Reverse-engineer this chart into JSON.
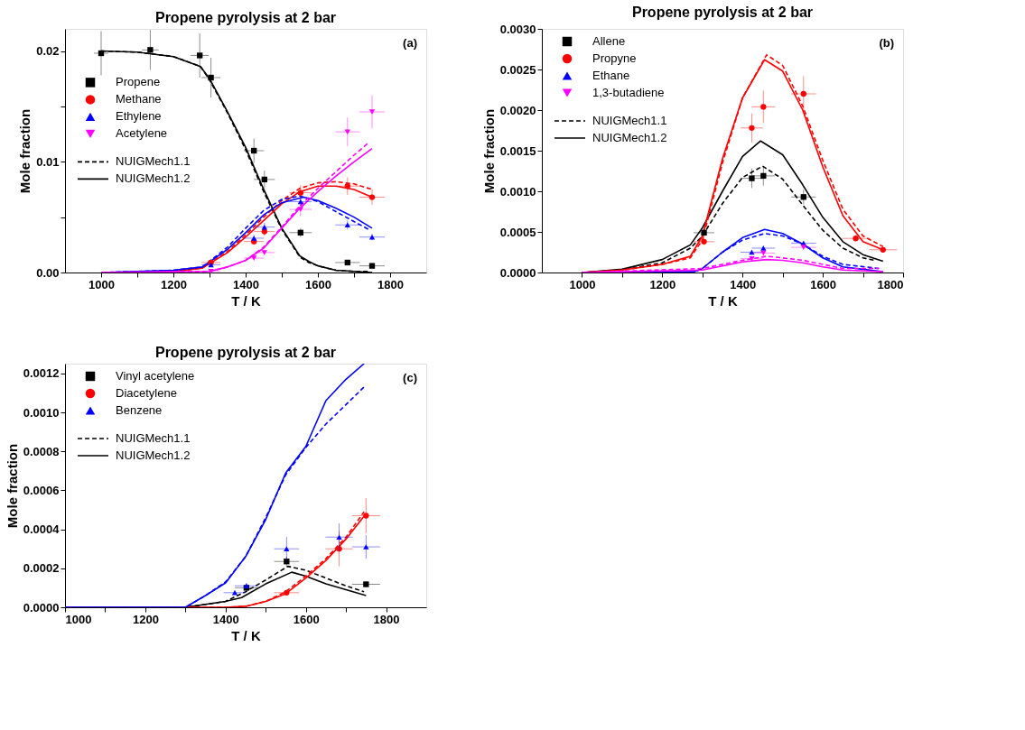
{
  "chart_data": [
    {
      "type": "scatter",
      "title": "Propene pyrolysis at 2 bar",
      "xlabel": "T / K",
      "ylabel": "Mole fraction",
      "annotations": [
        "(a)"
      ],
      "legend": "left",
      "grid": false,
      "xlim": [
        900,
        1900
      ],
      "xticks": [
        1000,
        {
          "value": 1100,
          "label": null
        },
        1200,
        {
          "value": 1300,
          "label": null
        },
        1400,
        {
          "value": 1500,
          "label": null
        },
        1600,
        {
          "value": 1700,
          "label": null
        },
        1800
      ],
      "ylim": [
        0,
        0.022
      ],
      "yticks": [
        {
          "value": 0,
          "label": "0.00"
        },
        {
          "value": 0.005,
          "label": null
        },
        0.01,
        {
          "value": 0.015,
          "label": null
        },
        0.02
      ],
      "series": [
        {
          "name": "Propene",
          "type": "scatter",
          "marker": "square",
          "color": "#000000",
          "x": [
            1000,
            1136,
            1273,
            1304,
            1423,
            1452,
            1552,
            1682,
            1750
          ],
          "values": [
            0.0198,
            0.0201,
            0.0196,
            0.0176,
            0.011,
            0.0084,
            0.0036,
            0.0009,
            0.0006
          ],
          "errors": [
            0.002,
            0.0018,
            0.002,
            0.0018,
            0.0011,
            0.0008,
            0.0004,
            0.0002,
            0.0002
          ],
          "xerrors": [
            20,
            23,
            25,
            26,
            28,
            29,
            31,
            34,
            35
          ]
        },
        {
          "name": "Methane",
          "type": "scatter",
          "marker": "circle",
          "color": "#ff0000",
          "x": [
            1304,
            1423,
            1452,
            1552,
            1682,
            1750
          ],
          "values": [
            0.0009,
            0.0028,
            0.0037,
            0.0072,
            0.0078,
            0.0068
          ],
          "errors": [
            0.0001,
            0.0003,
            0.0004,
            0.0007,
            0.0008,
            0.0007
          ],
          "xerrors": [
            26,
            28,
            29,
            31,
            34,
            35
          ]
        },
        {
          "name": "Ethylene",
          "type": "scatter",
          "marker": "triangle",
          "color": "#0000ff",
          "x": [
            1304,
            1423,
            1452,
            1552,
            1682,
            1750
          ],
          "values": [
            0.0007,
            0.0031,
            0.0041,
            0.0064,
            0.0043,
            0.0032
          ],
          "errors": [
            0.0001,
            0.0003,
            0.0004,
            0.0004,
            0.0004,
            0.0003
          ],
          "xerrors": [
            26,
            28,
            29,
            31,
            34,
            35
          ]
        },
        {
          "name": "Acetylene",
          "type": "scatter",
          "marker": "triangle-down",
          "color": "#ff00ff",
          "x": [
            1304,
            1423,
            1452,
            1552,
            1682,
            1750
          ],
          "values": [
            0.0001,
            0.0013,
            0.0018,
            0.0057,
            0.0127,
            0.0145
          ],
          "errors": [
            0.0001,
            0.0002,
            0.0002,
            0.0006,
            0.0013,
            0.0015
          ],
          "xerrors": [
            26,
            28,
            29,
            31,
            34,
            35
          ]
        },
        {
          "name": "NUIGMech1.1",
          "type": "line",
          "line_style": "dashed",
          "color": "#000000",
          "x": [
            1000,
            1100,
            1200,
            1275,
            1300,
            1350,
            1400,
            1450,
            1500,
            1550,
            1575,
            1600,
            1650,
            1700,
            1740
          ],
          "values": [
            0.02,
            0.0199,
            0.0195,
            0.0186,
            0.0174,
            0.0144,
            0.0111,
            0.0073,
            0.0039,
            0.0014,
            0.0009,
            0.0006,
            0.0002,
            0.0001,
            0.0001
          ]
        },
        {
          "name": "NUIGMech1.2",
          "type": "line",
          "line_style": "solid",
          "color": "#000000",
          "x": [
            1000,
            1100,
            1200,
            1275,
            1300,
            1350,
            1400,
            1450,
            1500,
            1550,
            1575,
            1600,
            1650,
            1700,
            1750
          ],
          "values": [
            0.02,
            0.0199,
            0.0195,
            0.0186,
            0.0175,
            0.0145,
            0.0113,
            0.0075,
            0.004,
            0.0015,
            0.001,
            0.0006,
            0.0002,
            0.0001,
            0
          ]
        },
        {
          "type": "line",
          "line_style": "dashed",
          "color": "#ff0000",
          "x": [
            1000,
            1200,
            1280,
            1350,
            1400,
            1450,
            1500,
            1550,
            1600,
            1650,
            1700,
            1750
          ],
          "values": [
            0,
            0.0001,
            0.0004,
            0.0019,
            0.0034,
            0.005,
            0.0065,
            0.0076,
            0.0081,
            0.0082,
            0.008,
            0.0075
          ]
        },
        {
          "type": "line",
          "line_style": "solid",
          "color": "#ff0000",
          "x": [
            1000,
            1200,
            1280,
            1350,
            1400,
            1450,
            1500,
            1550,
            1600,
            1650,
            1700,
            1750
          ],
          "values": [
            0,
            0.0001,
            0.0004,
            0.0018,
            0.0032,
            0.0047,
            0.0062,
            0.0073,
            0.0078,
            0.0078,
            0.0075,
            0.0068
          ]
        },
        {
          "type": "line",
          "line_style": "dashed",
          "color": "#0000ff",
          "x": [
            1000,
            1200,
            1280,
            1350,
            1400,
            1450,
            1500,
            1550,
            1600,
            1650,
            1700,
            1740
          ],
          "values": [
            0,
            0.0002,
            0.0005,
            0.0023,
            0.004,
            0.0056,
            0.0066,
            0.0069,
            0.0064,
            0.0055,
            0.0046,
            0.0039
          ]
        },
        {
          "type": "line",
          "line_style": "solid",
          "color": "#0000ff",
          "x": [
            1000,
            1200,
            1280,
            1350,
            1400,
            1450,
            1500,
            1560,
            1600,
            1650,
            1700,
            1750
          ],
          "values": [
            0,
            0.0002,
            0.0005,
            0.0021,
            0.0036,
            0.0052,
            0.0063,
            0.0068,
            0.0065,
            0.0058,
            0.005,
            0.004
          ]
        },
        {
          "type": "line",
          "line_style": "dashed",
          "color": "#ff00ff",
          "x": [
            1000,
            1300,
            1350,
            1400,
            1450,
            1500,
            1550,
            1600,
            1650,
            1700,
            1740
          ],
          "values": [
            0,
            0.0001,
            0.0005,
            0.0011,
            0.0023,
            0.0041,
            0.006,
            0.0076,
            0.0091,
            0.0106,
            0.0117
          ]
        },
        {
          "type": "line",
          "line_style": "solid",
          "color": "#ff00ff",
          "x": [
            1000,
            1300,
            1350,
            1400,
            1450,
            1500,
            1550,
            1600,
            1650,
            1700,
            1750
          ],
          "values": [
            0,
            0.0001,
            0.0005,
            0.0011,
            0.0022,
            0.004,
            0.0058,
            0.0073,
            0.0087,
            0.01,
            0.0112
          ]
        }
      ]
    },
    {
      "type": "scatter",
      "title": "Propene pyrolysis at 2 bar",
      "xlabel": "T / K",
      "ylabel": "Mole fraction",
      "annotations": [
        "(b)"
      ],
      "legend": "top left",
      "grid": false,
      "xlim": [
        900,
        1800
      ],
      "xticks": [
        1000,
        {
          "value": 1100,
          "label": null
        },
        1200,
        {
          "value": 1300,
          "label": null
        },
        1400,
        {
          "value": 1500,
          "label": null
        },
        1600,
        {
          "value": 1700,
          "label": null
        },
        1800
      ],
      "ylim": [
        0,
        0.003
      ],
      "yticks": [
        {
          "value": 0,
          "label": "0.0000"
        },
        0.0005,
        {
          "value": 0.001,
          "label": "0.0010"
        },
        0.0015,
        {
          "value": 0.002,
          "label": "0.0020"
        },
        0.0025,
        {
          "value": 0.003,
          "label": "0.0030"
        }
      ],
      "series": [
        {
          "name": "Allene",
          "type": "scatter",
          "marker": "square",
          "color": "#000000",
          "x": [
            1304,
            1423,
            1452,
            1552
          ],
          "values": [
            0.00049,
            0.00116,
            0.00119,
            0.00093
          ],
          "errors": [
            5e-05,
            0.00012,
            0.00012,
            9e-05
          ],
          "xerrors": [
            26,
            28,
            29,
            31
          ]
        },
        {
          "name": "Propyne",
          "type": "scatter",
          "marker": "circle",
          "color": "#ff0000",
          "x": [
            1304,
            1423,
            1452,
            1552,
            1682,
            1750
          ],
          "values": [
            0.00038,
            0.00178,
            0.00204,
            0.0022,
            0.00042,
            0.00028
          ],
          "errors": [
            4e-05,
            0.00018,
            0.0002,
            0.00022,
            4e-05,
            3e-05
          ],
          "xerrors": [
            26,
            28,
            29,
            31,
            34,
            35
          ]
        },
        {
          "name": "Ethane",
          "type": "scatter",
          "marker": "triangle",
          "color": "#0000ff",
          "x": [
            1423,
            1452,
            1552
          ],
          "values": [
            0.00025,
            0.0003,
            0.00036
          ],
          "errors": [
            3e-05,
            3e-05,
            3e-05
          ],
          "xerrors": [
            28,
            29,
            31
          ]
        },
        {
          "name": "1,3-butadiene",
          "type": "scatter",
          "marker": "triangle-down",
          "color": "#ff00ff",
          "x": [
            1423,
            1452,
            1552
          ],
          "values": [
            0.00017,
            0.00024,
            0.00031
          ],
          "errors": [
            2e-05,
            3e-05,
            3e-05
          ],
          "xerrors": [
            28,
            29,
            31
          ]
        },
        {
          "name": "NUIGMech1.1",
          "type": "line",
          "line_style": "dashed",
          "color": "#000000",
          "x": [
            1000,
            1100,
            1200,
            1270,
            1300,
            1350,
            1400,
            1450,
            1500,
            1550,
            1600,
            1650,
            1700,
            1730
          ],
          "values": [
            0,
            3e-05,
            0.00012,
            0.0003,
            0.00045,
            0.00085,
            0.00117,
            0.00131,
            0.00115,
            0.00083,
            0.00052,
            0.0003,
            0.00018,
            0.00015
          ]
        },
        {
          "name": "NUIGMech1.2",
          "type": "line",
          "line_style": "solid",
          "color": "#000000",
          "x": [
            1000,
            1100,
            1200,
            1270,
            1300,
            1350,
            1400,
            1445,
            1500,
            1550,
            1600,
            1650,
            1700,
            1750
          ],
          "values": [
            0,
            4e-05,
            0.00016,
            0.00034,
            0.00055,
            0.001,
            0.00143,
            0.00162,
            0.00145,
            0.00108,
            0.00068,
            0.00038,
            0.00022,
            0.00014
          ]
        },
        {
          "type": "line",
          "line_style": "dashed",
          "color": "#ff0000",
          "x": [
            1000,
            1100,
            1200,
            1270,
            1300,
            1350,
            1400,
            1460,
            1500,
            1550,
            1600,
            1650,
            1700,
            1750
          ],
          "values": [
            0,
            3e-05,
            0.0001,
            0.00018,
            0.0004,
            0.00135,
            0.00215,
            0.00268,
            0.00255,
            0.00205,
            0.00138,
            0.00078,
            0.00045,
            0.00032
          ]
        },
        {
          "type": "line",
          "line_style": "solid",
          "color": "#ff0000",
          "x": [
            1000,
            1100,
            1200,
            1270,
            1300,
            1350,
            1400,
            1455,
            1500,
            1550,
            1600,
            1650,
            1700,
            1750
          ],
          "values": [
            0,
            3e-05,
            0.0001,
            0.0002,
            0.00045,
            0.0014,
            0.00215,
            0.00262,
            0.00248,
            0.002,
            0.0013,
            0.0007,
            0.00038,
            0.00028
          ]
        },
        {
          "type": "line",
          "line_style": "dashed",
          "color": "#0000ff",
          "x": [
            1000,
            1280,
            1300,
            1350,
            1400,
            1455,
            1500,
            1550,
            1600,
            1650,
            1740
          ],
          "values": [
            0,
            0,
            5e-05,
            0.00025,
            0.0004,
            0.00048,
            0.00045,
            0.00035,
            0.0002,
            0.0001,
            5e-05
          ]
        },
        {
          "type": "line",
          "line_style": "solid",
          "color": "#0000ff",
          "x": [
            1000,
            1280,
            1300,
            1350,
            1400,
            1455,
            1500,
            1550,
            1600,
            1650,
            1750
          ],
          "values": [
            0,
            1e-05,
            5e-05,
            0.00025,
            0.00043,
            0.00053,
            0.00048,
            0.00035,
            0.00018,
            7e-05,
            1e-05
          ]
        },
        {
          "type": "line",
          "line_style": "dashed",
          "color": "#ff00ff",
          "x": [
            1000,
            1300,
            1350,
            1400,
            1460,
            1500,
            1550,
            1600,
            1650,
            1740
          ],
          "values": [
            0,
            5e-05,
            0.0001,
            0.00015,
            0.0002,
            0.00018,
            0.00015,
            0.0001,
            5e-05,
            5e-05
          ]
        },
        {
          "type": "line",
          "line_style": "solid",
          "color": "#ff00ff",
          "x": [
            1000,
            1300,
            1350,
            1400,
            1460,
            1500,
            1550,
            1600,
            1650,
            1750
          ],
          "values": [
            0,
            3e-05,
            8e-05,
            0.00013,
            0.00016,
            0.00015,
            0.00012,
            7e-05,
            3e-05,
            1e-05
          ]
        }
      ]
    },
    {
      "type": "scatter",
      "title": "Propene pyrolysis at 2 bar",
      "xlabel": "T / K",
      "ylabel": "Mole fraction",
      "annotations": [
        "(c)"
      ],
      "legend": "top left",
      "grid": false,
      "xlim": [
        1000,
        1900
      ],
      "xticks": [
        1000,
        {
          "value": 1100,
          "label": null
        },
        1200,
        {
          "value": 1300,
          "label": null
        },
        1400,
        {
          "value": 1500,
          "label": null
        },
        1600,
        {
          "value": 1700,
          "label": null
        },
        1800
      ],
      "ylim": [
        0,
        0.00125
      ],
      "yticks": [
        {
          "value": 0,
          "label": "0.0000"
        },
        0.0002,
        0.0004,
        0.0006,
        0.0008,
        {
          "value": 0.001,
          "label": "0.0010"
        },
        0.0012
      ],
      "series": [
        {
          "name": "Vinyl acetylene",
          "type": "scatter",
          "marker": "square",
          "color": "#000000",
          "x": [
            1452,
            1552,
            1750
          ],
          "values": [
            0.0001,
            0.000235,
            0.000118
          ],
          "errors": [
            1e-05,
            2.5e-05,
            1.5e-05
          ],
          "xerrors": [
            29,
            31,
            35
          ]
        },
        {
          "name": "Diacetylene",
          "type": "scatter",
          "marker": "circle",
          "color": "#ff0000",
          "x": [
            1552,
            1683,
            1750
          ],
          "values": [
            7.5e-05,
            0.0003,
            0.00047
          ],
          "errors": [
            1e-05,
            9e-05,
            9e-05
          ],
          "xerrors": [
            31,
            34,
            35
          ]
        },
        {
          "name": "Benzene",
          "type": "scatter",
          "marker": "triangle",
          "color": "#0000ff",
          "x": [
            1423,
            1452,
            1552,
            1683,
            1750
          ],
          "values": [
            7.5e-05,
            0.00011,
            0.0003,
            0.00036,
            0.00031
          ],
          "errors": [
            1e-05,
            1.5e-05,
            6e-05,
            7e-05,
            6e-05
          ],
          "xerrors": [
            28,
            29,
            31,
            34,
            35
          ]
        },
        {
          "name": "NUIGMech1.1",
          "type": "line",
          "line_style": "dashed",
          "color": "#000000",
          "x": [
            1000,
            1300,
            1350,
            1400,
            1450,
            1500,
            1555,
            1600,
            1650,
            1700,
            1745
          ],
          "values": [
            0,
            0,
            1.5e-05,
            3e-05,
            8e-05,
            0.00014,
            0.00021,
            0.00019,
            0.00015,
            0.00011,
            8e-05
          ]
        },
        {
          "name": "NUIGMech1.2",
          "type": "line",
          "line_style": "solid",
          "color": "#000000",
          "x": [
            1000,
            1300,
            1350,
            1400,
            1440,
            1500,
            1565,
            1600,
            1650,
            1700,
            1750
          ],
          "values": [
            0,
            0,
            1.5e-05,
            3e-05,
            5e-05,
            0.00012,
            0.00018,
            0.00016,
            0.00012,
            9e-05,
            6e-05
          ]
        },
        {
          "type": "line",
          "line_style": "dashed",
          "color": "#ff0000",
          "x": [
            1000,
            1400,
            1450,
            1500,
            1550,
            1600,
            1650,
            1700,
            1745
          ],
          "values": [
            0,
            0,
            5e-06,
            3e-05,
            8e-05,
            0.00016,
            0.00025,
            0.00036,
            0.00049
          ]
        },
        {
          "type": "line",
          "line_style": "solid",
          "color": "#ff0000",
          "x": [
            1000,
            1400,
            1450,
            1500,
            1550,
            1600,
            1650,
            1700,
            1750
          ],
          "values": [
            0,
            0,
            5e-06,
            3e-05,
            7e-05,
            0.00015,
            0.00024,
            0.00035,
            0.00048
          ]
        },
        {
          "type": "line",
          "line_style": "dashed",
          "color": "#0000ff",
          "x": [
            1000,
            1300,
            1350,
            1400,
            1450,
            1500,
            1550,
            1600,
            1650,
            1700,
            1745
          ],
          "values": [
            0,
            0,
            6e-05,
            0.00013,
            0.00026,
            0.00046,
            0.00068,
            0.00082,
            0.00094,
            0.00104,
            0.00113
          ]
        },
        {
          "type": "line",
          "line_style": "solid",
          "color": "#0000ff",
          "x": [
            1000,
            1300,
            1350,
            1400,
            1450,
            1500,
            1550,
            1600,
            1650,
            1700,
            1745
          ],
          "values": [
            0,
            0,
            6e-05,
            0.000125,
            0.00026,
            0.00045,
            0.00069,
            0.000825,
            0.00106,
            0.00117,
            0.00125
          ]
        }
      ]
    }
  ]
}
